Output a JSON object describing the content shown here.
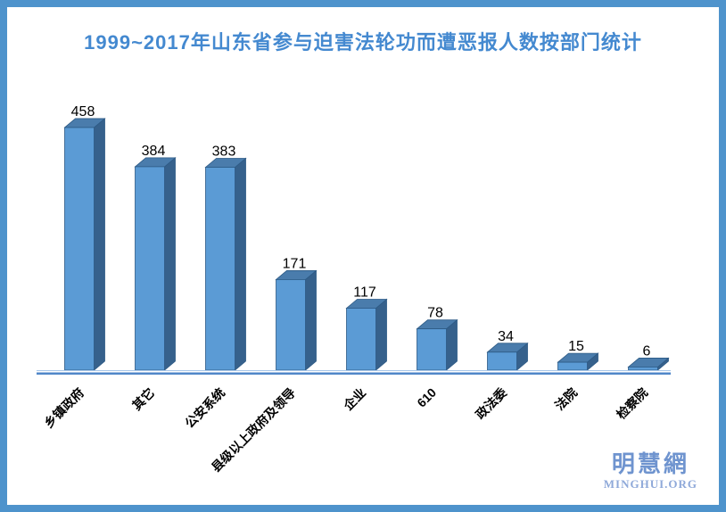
{
  "title": "1999~2017年山东省参与迫害法轮功而遭恶报人数按部门统计",
  "chart_data": {
    "type": "bar",
    "style": "3d-column",
    "title": "1999~2017年山东省参与迫害法轮功而遭恶报人数按部门统计",
    "categories": [
      "乡镇政府",
      "其它",
      "公安系统",
      "县级以上政府及领导",
      "企业",
      "610",
      "政法委",
      "法院",
      "检察院"
    ],
    "values": [
      458,
      384,
      383,
      171,
      117,
      78,
      34,
      15,
      6
    ],
    "xlabel": "",
    "ylabel": "",
    "ylim": [
      0,
      480
    ],
    "grid": false,
    "legend": "none",
    "value_labels": true,
    "category_label_rotation": 45,
    "colors": {
      "bar_front": "#5B9BD5",
      "bar_top": "#4A7CAC",
      "bar_side": "#36618C",
      "bar_outline": "#2D5A85",
      "axis_line": "#5087C8",
      "axis_line_light": "#A8C6E8",
      "title_text": "#4489D0",
      "frame_border": "#4E93CC",
      "value_label": "#000000",
      "category_label": "#000000"
    }
  },
  "watermark": {
    "logo_cn": "明慧網",
    "logo_en": "MINGHUI.ORG",
    "color_cn": "#6F94CF",
    "color_en": "#8FA9D9"
  }
}
